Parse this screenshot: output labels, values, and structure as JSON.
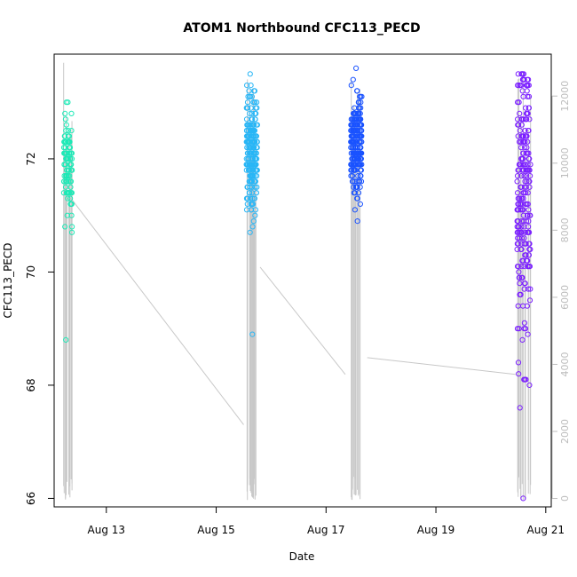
{
  "chart_data": {
    "type": "scatter",
    "title": "ATOM1 Northbound CFC113_PECD",
    "xlabel": "Date",
    "ylabel": "CFC113_PECD",
    "xlim": [
      12.05,
      21.1
    ],
    "ylim": [
      65.85,
      73.85
    ],
    "x_ticks": [
      {
        "value": 13,
        "label": "Aug 13"
      },
      {
        "value": 15,
        "label": "Aug 15"
      },
      {
        "value": 17,
        "label": "Aug 17"
      },
      {
        "value": 19,
        "label": "Aug 19"
      },
      {
        "value": 21,
        "label": "Aug 21"
      }
    ],
    "y_ticks": [
      66,
      68,
      70,
      72
    ],
    "secondary_axis": {
      "ylim": [
        -250,
        13250
      ],
      "ticks": [
        0,
        2000,
        4000,
        6000,
        8000,
        10000,
        12000
      ],
      "color": "#bdbdbd"
    },
    "groups": [
      {
        "name": "Aug 12",
        "center": 12.3,
        "spread": 0.075,
        "count": 100,
        "mean": 71.9,
        "sd": 0.5,
        "min": 68.8,
        "max": 73.0,
        "color": "#1de9b6"
      },
      {
        "name": "Aug 15",
        "center": 15.65,
        "spread": 0.1,
        "count": 240,
        "mean": 72.1,
        "sd": 0.55,
        "min": 68.9,
        "max": 73.5,
        "color": "#29b6f6"
      },
      {
        "name": "Aug 17",
        "center": 17.55,
        "spread": 0.1,
        "count": 240,
        "mean": 72.2,
        "sd": 0.4,
        "min": 70.9,
        "max": 73.6,
        "color": "#1a53ff"
      },
      {
        "name": "Aug 20",
        "center": 20.6,
        "spread": 0.12,
        "count": 240,
        "mean": 71.4,
        "sd": 1.3,
        "min": 66.0,
        "max": 73.5,
        "color": "#7b1fff"
      }
    ],
    "altitude_trace": {
      "color": "#c8c8c8",
      "connectors": [
        {
          "x1": 12.38,
          "y1": 8900,
          "x2": 15.5,
          "y2": 2200
        },
        {
          "x1": 15.8,
          "y1": 6900,
          "x2": 17.35,
          "y2": 3700
        },
        {
          "x1": 17.75,
          "y1": 4200,
          "x2": 20.45,
          "y2": 3700
        }
      ]
    }
  }
}
